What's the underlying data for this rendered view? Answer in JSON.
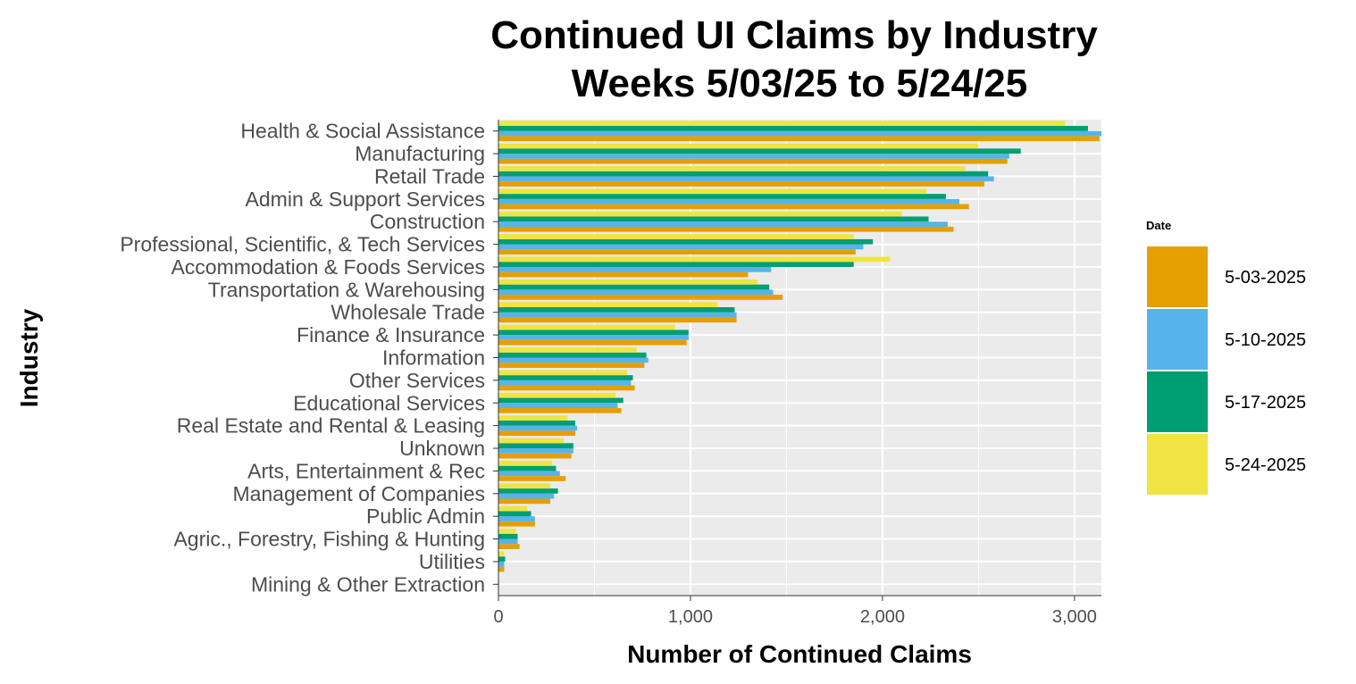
{
  "chart_data": {
    "type": "bar",
    "orientation": "horizontal",
    "title": [
      "Continued UI Claims by Industry",
      "Weeks 5/03/25 to 5/24/25"
    ],
    "xlabel": "Number of Continued Claims",
    "ylabel": "Industry",
    "xlim": [
      0,
      3140
    ],
    "xticks": [
      0,
      1000,
      2000,
      3000
    ],
    "xtick_labels": [
      "0",
      "1,000",
      "2,000",
      "3,000"
    ],
    "grid": true,
    "legend": {
      "title": "Date",
      "position": "right"
    },
    "categories": [
      "Health & Social Assistance",
      "Manufacturing",
      "Retail Trade",
      "Admin & Support Services",
      "Construction",
      "Professional, Scientific, & Tech Services",
      "Accommodation & Foods Services",
      "Transportation & Warehousing",
      "Wholesale Trade",
      "Finance & Insurance",
      "Information",
      "Other Services",
      "Educational Services",
      "Real Estate and Rental & Leasing",
      "Unknown",
      "Arts, Entertainment & Rec",
      "Management of Companies",
      "Public Admin",
      "Agric., Forestry, Fishing & Hunting",
      "Utilities",
      "Mining & Other Extraction"
    ],
    "series": [
      {
        "name": "5-03-2025",
        "color": "#E69F00",
        "values": [
          3130,
          2650,
          2530,
          2450,
          2370,
          1860,
          1300,
          1480,
          1240,
          980,
          760,
          710,
          640,
          400,
          380,
          350,
          270,
          190,
          110,
          30,
          3
        ]
      },
      {
        "name": "5-10-2025",
        "color": "#56B4E9",
        "values": [
          3150,
          2660,
          2580,
          2400,
          2340,
          1900,
          1420,
          1430,
          1240,
          990,
          780,
          690,
          620,
          410,
          390,
          320,
          290,
          190,
          100,
          30,
          3
        ]
      },
      {
        "name": "5-17-2025",
        "color": "#009E73",
        "values": [
          3070,
          2720,
          2550,
          2330,
          2240,
          1950,
          1850,
          1410,
          1230,
          990,
          770,
          700,
          650,
          400,
          390,
          300,
          310,
          170,
          100,
          35,
          3
        ]
      },
      {
        "name": "5-24-2025",
        "color": "#F0E442",
        "values": [
          2950,
          2500,
          2430,
          2230,
          2100,
          1850,
          2040,
          1350,
          1140,
          920,
          720,
          670,
          610,
          360,
          340,
          280,
          270,
          150,
          90,
          30,
          2
        ]
      }
    ]
  }
}
